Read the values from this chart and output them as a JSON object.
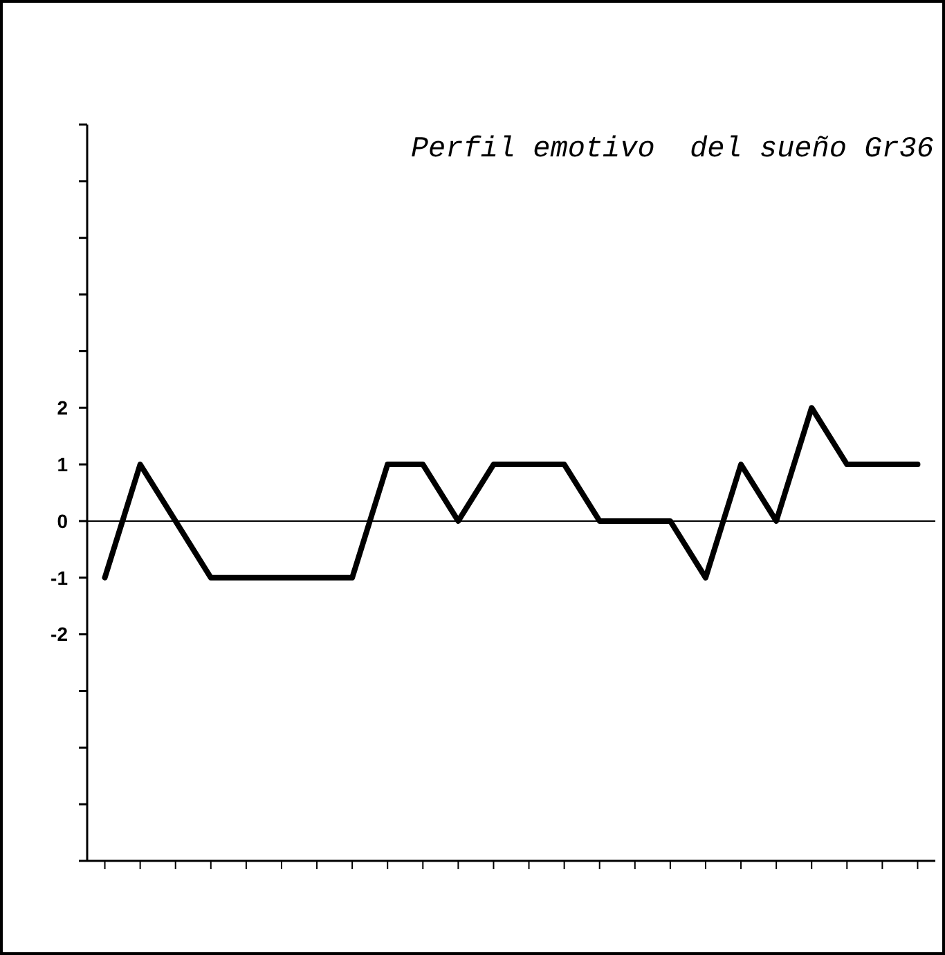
{
  "chart_data": {
    "type": "line",
    "title": "Perfil emotivo  del sueño Gr36",
    "categories": [
      null,
      null,
      null,
      null,
      null,
      null,
      null,
      null,
      null,
      null,
      null,
      null,
      null,
      null,
      null,
      null,
      null,
      null,
      null,
      null,
      null,
      null,
      null,
      null
    ],
    "series": [
      {
        "color": "#000000",
        "values": [
          -1,
          1,
          0,
          -1,
          -1,
          -1,
          -1,
          -1,
          1,
          1,
          0,
          1,
          1,
          1,
          0,
          0,
          0,
          -1,
          1,
          0,
          2,
          1,
          1,
          1
        ]
      }
    ],
    "ylim": [
      -6,
      7
    ],
    "yticks": [
      {
        "value": -6,
        "label": null
      },
      {
        "value": -5,
        "label": null
      },
      {
        "value": -4,
        "label": null
      },
      {
        "value": -3,
        "label": null
      },
      -2,
      -1,
      0,
      1,
      2,
      {
        "value": 3,
        "label": null
      },
      {
        "value": 4,
        "label": null
      },
      {
        "value": 5,
        "label": null
      },
      {
        "value": 6,
        "label": null
      },
      {
        "value": 7,
        "label": null
      }
    ],
    "ref_lines": [
      {
        "axis": "y",
        "value": 0,
        "color": "#000000"
      }
    ],
    "grid": false,
    "marker": "none",
    "line_style": "solid"
  }
}
